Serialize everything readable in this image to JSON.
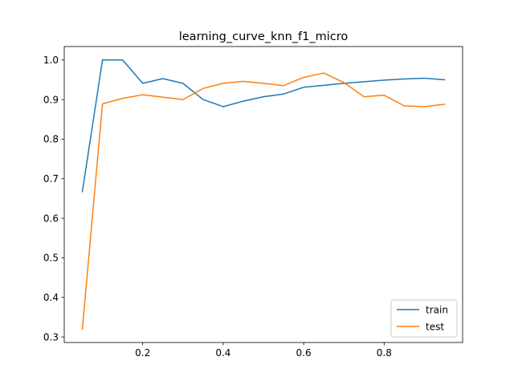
{
  "chart_data": {
    "type": "line",
    "title": "learning_curve_knn_f1_micro",
    "xlabel": "",
    "ylabel": "",
    "xlim": [
      0.005,
      0.995
    ],
    "ylim": [
      0.286,
      1.034
    ],
    "xticks": [
      0.2,
      0.4,
      0.6,
      0.8
    ],
    "xtick_labels": [
      "0.2",
      "0.4",
      "0.6",
      "0.8"
    ],
    "yticks": [
      0.3,
      0.4,
      0.5,
      0.6,
      0.7,
      0.8,
      0.9,
      1.0
    ],
    "ytick_labels": [
      "0.3",
      "0.4",
      "0.5",
      "0.6",
      "0.7",
      "0.8",
      "0.9",
      "1.0"
    ],
    "grid": false,
    "legend_position": "lower-right",
    "x": [
      0.05,
      0.1,
      0.15,
      0.2,
      0.25,
      0.3,
      0.35,
      0.4,
      0.45,
      0.5,
      0.55,
      0.6,
      0.65,
      0.7,
      0.75,
      0.8,
      0.85,
      0.9,
      0.95
    ],
    "series": [
      {
        "name": "train",
        "color": "#1f77b4",
        "values": [
          0.667,
          1.0,
          1.0,
          0.941,
          0.953,
          0.941,
          0.9,
          0.882,
          0.896,
          0.907,
          0.914,
          0.931,
          0.936,
          0.941,
          0.945,
          0.949,
          0.952,
          0.954,
          0.95
        ]
      },
      {
        "name": "test",
        "color": "#ff7f0e",
        "values": [
          0.32,
          0.889,
          0.903,
          0.912,
          0.906,
          0.9,
          0.928,
          0.941,
          0.946,
          0.941,
          0.935,
          0.956,
          0.967,
          0.943,
          0.907,
          0.911,
          0.884,
          0.882,
          0.888
        ]
      }
    ]
  }
}
